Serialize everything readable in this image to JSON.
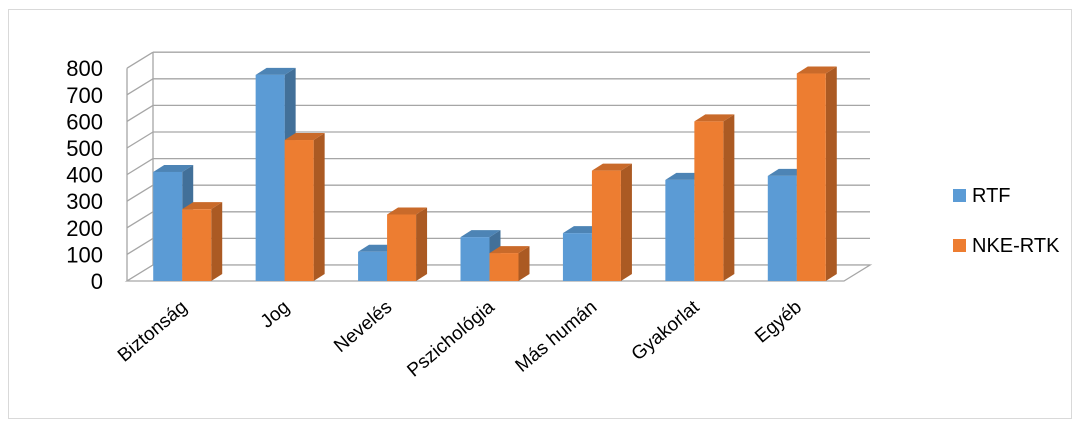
{
  "chart_data": {
    "type": "bar",
    "title": "",
    "xlabel": "",
    "ylabel": "",
    "ylim": [
      0,
      800
    ],
    "yticks": [
      0,
      100,
      200,
      300,
      400,
      500,
      600,
      700,
      800
    ],
    "grid": true,
    "legend_position": "right",
    "categories": [
      "Biztonság",
      "Jog",
      "Nevelés",
      "Pszichológia",
      "Más humán",
      "Gyakorlat",
      "Egyéb"
    ],
    "series": [
      {
        "name": "RTF",
        "color": "#5b9bd5",
        "values": [
          410,
          775,
          110,
          165,
          180,
          380,
          395
        ]
      },
      {
        "name": "NKE-RTK",
        "color": "#ed7d31",
        "values": [
          270,
          530,
          250,
          105,
          415,
          600,
          780
        ]
      }
    ]
  }
}
